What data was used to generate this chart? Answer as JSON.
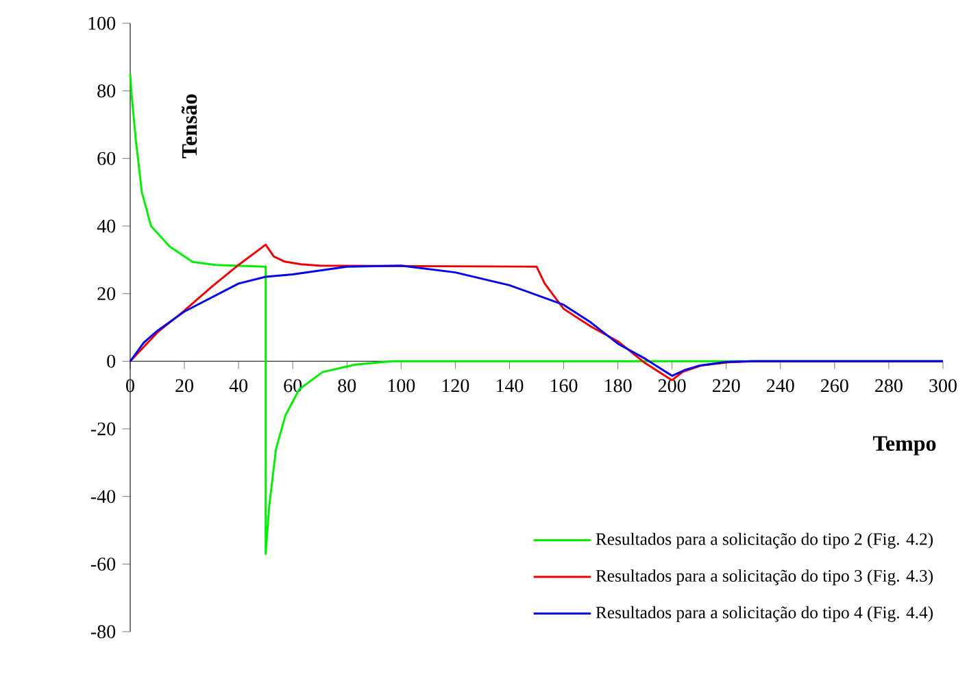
{
  "chart_data": {
    "type": "line",
    "xlabel": "Tempo",
    "ylabel": "Tensão",
    "xlim": [
      0,
      300
    ],
    "ylim": [
      -80,
      100
    ],
    "xticks": [
      0,
      20,
      40,
      60,
      80,
      100,
      120,
      140,
      160,
      180,
      200,
      220,
      240,
      260,
      280,
      300
    ],
    "yticks": [
      -80,
      -60,
      -40,
      -20,
      0,
      20,
      40,
      60,
      80,
      100
    ],
    "grid": false,
    "legend": "bottom right",
    "marker": "none",
    "line_style": "solid",
    "series": [
      {
        "name": "Resultados para a solicitação do tipo 2 (Fig. 4.2)",
        "color": "#00ee00",
        "x": [
          0,
          0.5,
          2,
          4.3,
          7.7,
          14.5,
          23,
          31.6,
          49.6,
          50,
          50,
          51.3,
          53.8,
          57.3,
          62.4,
          71,
          83,
          96.6,
          300
        ],
        "values": [
          85,
          79,
          66,
          50,
          40,
          34,
          29.4,
          28.5,
          28,
          28,
          -57,
          -43,
          -26,
          -16,
          -8.3,
          -3.2,
          -1,
          0,
          0
        ]
      },
      {
        "name": "Resultados para a solicitação do tipo 3 (Fig. 4.3)",
        "color": "#ee0000",
        "x": [
          0,
          10,
          20,
          30,
          40,
          50,
          53,
          57,
          63,
          70,
          150,
          153,
          160,
          170,
          180,
          190,
          200,
          204,
          211,
          221,
          230,
          300
        ],
        "values": [
          0,
          8.5,
          15,
          22,
          28.5,
          34.5,
          31,
          29.5,
          28.7,
          28.3,
          28,
          23,
          15.5,
          10.3,
          5.9,
          -0.5,
          -5.6,
          -3.1,
          -1.2,
          -0.3,
          0,
          0
        ]
      },
      {
        "name": "Resultados para a solicitação do tipo 4 (Fig. 4.4)",
        "color": "#0000ee",
        "x": [
          0,
          5,
          10,
          20,
          40,
          50,
          60,
          80,
          100,
          120,
          140,
          160,
          170,
          180,
          190,
          200,
          205,
          210,
          220,
          230,
          300
        ],
        "values": [
          0,
          5.5,
          9,
          14.7,
          23,
          25,
          25.7,
          28,
          28.3,
          26.3,
          22.5,
          16.7,
          11.5,
          5.2,
          0.8,
          -4.3,
          -2.5,
          -1.3,
          -0.2,
          0,
          0
        ]
      }
    ]
  }
}
